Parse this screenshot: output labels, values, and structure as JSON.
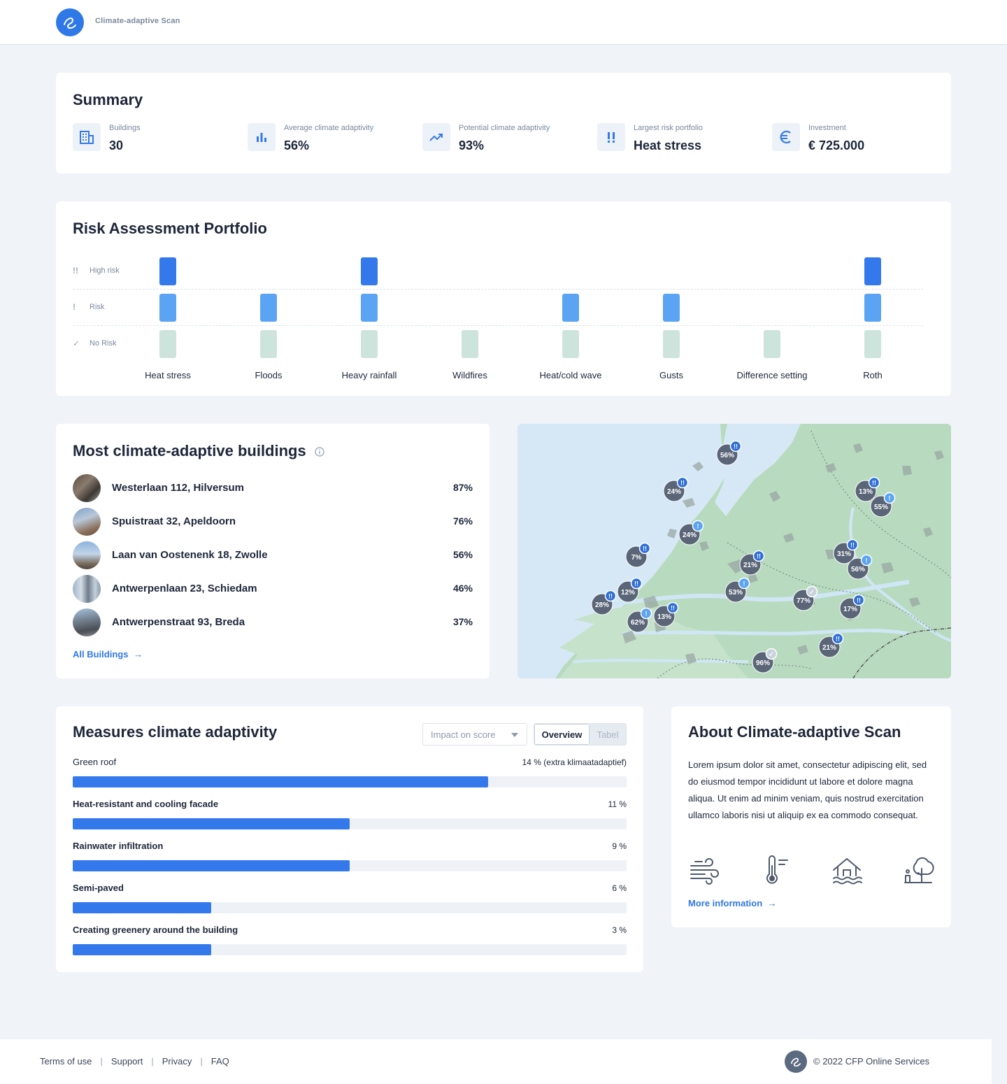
{
  "header": {
    "app_title": "Climate-adaptive Scan"
  },
  "summary": {
    "title": "Summary",
    "items": [
      {
        "label": "Buildings",
        "value": "30",
        "icon": "building-icon"
      },
      {
        "label": "Average climate adaptivity",
        "value": "56%",
        "icon": "bar-chart-icon"
      },
      {
        "label": "Potential climate adaptivity",
        "value": "93%",
        "icon": "trending-up-icon"
      },
      {
        "label": "Largest risk portfolio",
        "value": "Heat stress",
        "icon": "alert-icon"
      },
      {
        "label": "Investment",
        "value": "€ 725.000",
        "icon": "euro-icon"
      }
    ]
  },
  "risk": {
    "title": "Risk Assessment Portfolio",
    "rows": [
      {
        "label": "High risk",
        "marker": "!!"
      },
      {
        "label": "Risk",
        "marker": "!"
      },
      {
        "label": "No Risk",
        "marker": "✓"
      }
    ],
    "categories": [
      {
        "name": "Heat stress",
        "high": true,
        "risk": true,
        "none": true
      },
      {
        "name": "Floods",
        "high": false,
        "risk": true,
        "none": true
      },
      {
        "name": "Heavy rainfall",
        "high": true,
        "risk": true,
        "none": true
      },
      {
        "name": "Wildfires",
        "high": false,
        "risk": false,
        "none": true
      },
      {
        "name": "Heat/cold wave",
        "high": false,
        "risk": true,
        "none": true
      },
      {
        "name": "Gusts",
        "high": false,
        "risk": true,
        "none": true
      },
      {
        "name": "Difference setting",
        "high": false,
        "risk": false,
        "none": true
      },
      {
        "name": "Roth",
        "high": true,
        "risk": true,
        "none": true
      }
    ]
  },
  "buildings": {
    "title": "Most climate-adaptive buildings",
    "items": [
      {
        "name": "Westerlaan 112, Hilversum",
        "score": "87%"
      },
      {
        "name": "Spuistraat 32, Apeldoorn",
        "score": "76%"
      },
      {
        "name": "Laan van Oostenenk 18, Zwolle",
        "score": "56%"
      },
      {
        "name": "Antwerpenlaan 23, Schiedam",
        "score": "46%"
      },
      {
        "name": "Antwerpenstraat 93, Breda",
        "score": "37%"
      }
    ],
    "all_link": "All Buildings"
  },
  "map": {
    "markers": [
      {
        "label": "56%",
        "status": "high"
      },
      {
        "label": "24%",
        "status": "high"
      },
      {
        "label": "24%",
        "status": "risk"
      },
      {
        "label": "7%",
        "status": "high"
      },
      {
        "label": "21%",
        "status": "high"
      },
      {
        "label": "12%",
        "status": "high"
      },
      {
        "label": "28%",
        "status": "high"
      },
      {
        "label": "53%",
        "status": "risk"
      },
      {
        "label": "62%",
        "status": "risk"
      },
      {
        "label": "13%",
        "status": "high"
      },
      {
        "label": "77%",
        "status": "ok"
      },
      {
        "label": "13%",
        "status": "high"
      },
      {
        "label": "55%",
        "status": "risk"
      },
      {
        "label": "31%",
        "status": "high"
      },
      {
        "label": "56%",
        "status": "risk"
      },
      {
        "label": "17%",
        "status": "high"
      },
      {
        "label": "21%",
        "status": "high"
      },
      {
        "label": "96%",
        "status": "ok"
      }
    ]
  },
  "measures": {
    "title": "Measures climate adaptivity",
    "dropdown": "Impact on score",
    "toggle": {
      "active": "Overview",
      "inactive": "Tabel"
    },
    "items": [
      {
        "label": "Green roof",
        "value": "14 % (extra klimaatadaptief)",
        "fill": 0.75
      },
      {
        "label": "Heat-resistant and cooling facade",
        "value": "11 %",
        "fill": 0.5
      },
      {
        "label": "Rainwater infiltration",
        "value": "9 %",
        "fill": 0.5
      },
      {
        "label": "Semi-paved",
        "value": "6 %",
        "fill": 0.25
      },
      {
        "label": "Creating greenery around the building",
        "value": "3 %",
        "fill": 0.25
      }
    ]
  },
  "about": {
    "title": "About Climate-adaptive Scan",
    "text": "Lorem ipsum dolor sit amet, consectetur adipiscing elit, sed do eiusmod tempor incididunt ut labore et dolore magna aliqua. Ut enim ad minim veniam, quis nostrud exercitation ullamco laboris nisi ut aliquip ex ea commodo consequat.",
    "icons": [
      "wind-icon",
      "thermometer-icon",
      "flooded-house-icon",
      "tree-icon"
    ],
    "link": "More information"
  },
  "footer": {
    "links": [
      "Terms of use",
      "Support",
      "Privacy",
      "FAQ"
    ],
    "copyright": "© 2022 CFP Online Services"
  },
  "colors": {
    "accent": "#2f78e8",
    "high_risk": "#3479ec",
    "risk": "#5ba3f3",
    "no_risk": "#cde4dd",
    "map_land": "#b8dbbf",
    "map_water": "#d6e8f6"
  }
}
